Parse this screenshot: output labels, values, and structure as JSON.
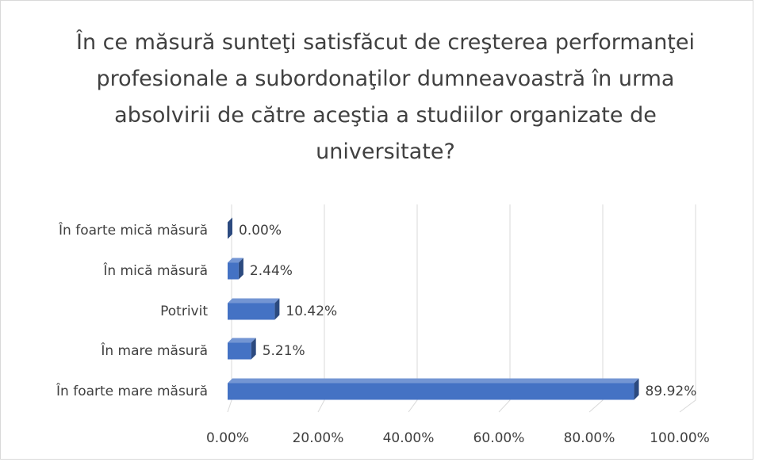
{
  "chart_data": {
    "type": "bar3d_horizontal",
    "title": "În ce măsură sunteţi satisfăcut de creşterea performanţei profesionale a subordonaţilor dumneavoastră în urma absolvirii de către aceştia a studiilor organizate de universitate?",
    "categories": [
      "În foarte mică măsură",
      "În mică măsură",
      "Potrivit",
      "În mare măsură",
      "În foarte mare măsură"
    ],
    "values": [
      0,
      2.44,
      10.42,
      5.21,
      89.92
    ],
    "value_labels": [
      "0.00%",
      "2.44%",
      "10.42%",
      "5.21%",
      "89.92%"
    ],
    "color": "#4472c4",
    "xlim": [
      0,
      100
    ],
    "xticks": [
      {
        "value": 0,
        "label": "0.00%"
      },
      {
        "value": 20,
        "label": "20.00%"
      },
      {
        "value": 40,
        "label": "40.00%"
      },
      {
        "value": 60,
        "label": "60.00%"
      },
      {
        "value": 80,
        "label": "80.00%"
      },
      {
        "value": 100,
        "label": "100.00%"
      }
    ],
    "grid": true
  }
}
